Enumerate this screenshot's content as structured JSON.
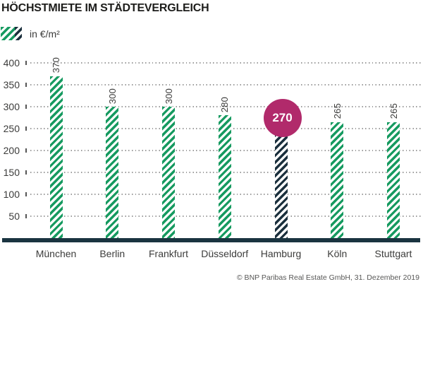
{
  "header": {
    "title": "HÖCHSTMIETE IM STÄDTEVERGLEICH"
  },
  "legend": {
    "label": "in €/m²"
  },
  "source": "© BNP Paribas Real Estate GmbH, 31. Dezember 2019",
  "chart_data": {
    "type": "bar",
    "title": "HÖCHSTMIETE IM STÄDTEVERGLEICH",
    "unit_label": "in €/m²",
    "categories": [
      "München",
      "Berlin",
      "Frankfurt",
      "Düsseldorf",
      "Hamburg",
      "Köln",
      "Stuttgart"
    ],
    "values": [
      370,
      300,
      300,
      280,
      270,
      265,
      265
    ],
    "yticks": [
      400,
      350,
      300,
      250,
      200,
      150,
      100,
      50
    ],
    "ylim": [
      0,
      430
    ],
    "grid": "horizontal dotted gridlines with left tick marks",
    "legend_position": "top-left",
    "bar_style": "diagonal hatched stripes",
    "value_labels": "rotated 90deg above bars",
    "highlight": {
      "category": "Hamburg",
      "value": 270,
      "badge": "circle"
    },
    "colors": {
      "bar_stripes": "#169a60",
      "highlight_bar_stripes": "#1b303d",
      "baseline": "#1a3440",
      "badge": "#b12a6b",
      "grid_dots": "#9b9b9b",
      "text": "#3c3c3b"
    }
  }
}
